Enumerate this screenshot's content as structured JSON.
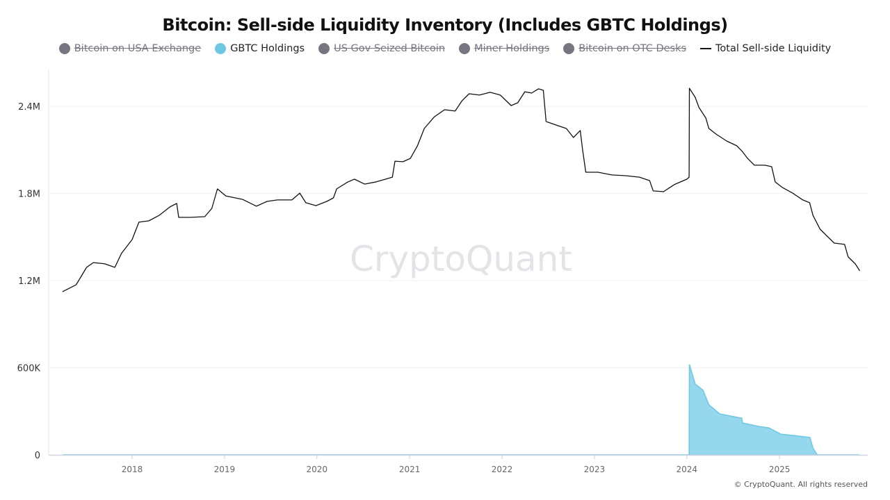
{
  "chart_data": {
    "type": "line",
    "title": "Bitcoin: Sell-side Liquidity Inventory (Includes GBTC Holdings)",
    "legend": [
      {
        "name": "Bitcoin on USA Exchange",
        "color": "#77757f",
        "hidden": true
      },
      {
        "name": "GBTC Holdings",
        "color": "#6ec8e4",
        "hidden": false
      },
      {
        "name": "US Gov Seized Bitcoin",
        "color": "#77757f",
        "hidden": true
      },
      {
        "name": "Miner Holdings",
        "color": "#77757f",
        "hidden": true
      },
      {
        "name": "Bitcoin on OTC Desks",
        "color": "#77757f",
        "hidden": true
      },
      {
        "name": "Total Sell-side Liquidity",
        "color": "#111111",
        "hidden": false
      }
    ],
    "legend_placement": "top",
    "y_ticks": [
      "0",
      "600K",
      "1.2M",
      "1.8M",
      "2.4M"
    ],
    "y_tick_values": [
      0,
      600000,
      1200000,
      1800000,
      2400000
    ],
    "x_ticks": [
      "2018",
      "2019",
      "2020",
      "2021",
      "2022",
      "2023",
      "2024",
      "2025"
    ],
    "xlim": [
      "2017-04-01",
      "2025-11-14"
    ],
    "ylim": [
      0,
      2600000
    ],
    "grid": true,
    "watermark": "CryptoQuant",
    "series": [
      {
        "name": "Total Sell-side Liquidity",
        "type": "line",
        "color": "#111111",
        "points": [
          [
            "2017-04-01",
            1123000
          ],
          [
            "2017-05-25",
            1171000
          ],
          [
            "2017-07-05",
            1291000
          ],
          [
            "2017-08-01",
            1324000
          ],
          [
            "2017-09-15",
            1315000
          ],
          [
            "2017-10-25",
            1291000
          ],
          [
            "2017-11-20",
            1387000
          ],
          [
            "2018-01-01",
            1482000
          ],
          [
            "2018-01-28",
            1602000
          ],
          [
            "2018-03-08",
            1611000
          ],
          [
            "2018-04-18",
            1649000
          ],
          [
            "2018-05-30",
            1707000
          ],
          [
            "2018-06-26",
            1731000
          ],
          [
            "2018-07-04",
            1635000
          ],
          [
            "2018-08-20",
            1635000
          ],
          [
            "2018-10-15",
            1640000
          ],
          [
            "2018-11-12",
            1697000
          ],
          [
            "2018-12-04",
            1831000
          ],
          [
            "2019-01-06",
            1783000
          ],
          [
            "2019-03-13",
            1759000
          ],
          [
            "2019-05-07",
            1712000
          ],
          [
            "2019-06-18",
            1745000
          ],
          [
            "2019-07-29",
            1755000
          ],
          [
            "2019-09-24",
            1755000
          ],
          [
            "2019-10-25",
            1802000
          ],
          [
            "2019-11-18",
            1736000
          ],
          [
            "2019-12-28",
            1716000
          ],
          [
            "2020-02-09",
            1745000
          ],
          [
            "2020-03-06",
            1769000
          ],
          [
            "2020-03-19",
            1831000
          ],
          [
            "2020-05-01",
            1878000
          ],
          [
            "2020-05-28",
            1898000
          ],
          [
            "2020-07-07",
            1864000
          ],
          [
            "2020-08-18",
            1878000
          ],
          [
            "2020-09-28",
            1898000
          ],
          [
            "2020-10-25",
            1912000
          ],
          [
            "2020-11-04",
            2022000
          ],
          [
            "2020-12-06",
            2018000
          ],
          [
            "2021-01-04",
            2041000
          ],
          [
            "2021-02-01",
            2128000
          ],
          [
            "2021-02-28",
            2247000
          ],
          [
            "2021-04-09",
            2328000
          ],
          [
            "2021-05-19",
            2376000
          ],
          [
            "2021-06-30",
            2367000
          ],
          [
            "2021-07-27",
            2438000
          ],
          [
            "2021-08-24",
            2486000
          ],
          [
            "2021-10-04",
            2477000
          ],
          [
            "2021-11-15",
            2496000
          ],
          [
            "2021-12-25",
            2477000
          ],
          [
            "2022-02-06",
            2405000
          ],
          [
            "2022-03-04",
            2424000
          ],
          [
            "2022-04-01",
            2500000
          ],
          [
            "2022-04-28",
            2491000
          ],
          [
            "2022-05-25",
            2520000
          ],
          [
            "2022-06-13",
            2510000
          ],
          [
            "2022-06-24",
            2295000
          ],
          [
            "2022-08-02",
            2271000
          ],
          [
            "2022-09-12",
            2247000
          ],
          [
            "2022-10-10",
            2185000
          ],
          [
            "2022-11-06",
            2233000
          ],
          [
            "2022-11-15",
            2104000
          ],
          [
            "2022-11-28",
            1946000
          ],
          [
            "2023-01-15",
            1946000
          ],
          [
            "2023-03-10",
            1927000
          ],
          [
            "2023-05-04",
            1922000
          ],
          [
            "2023-06-28",
            1912000
          ],
          [
            "2023-08-07",
            1888000
          ],
          [
            "2023-08-21",
            1817000
          ],
          [
            "2023-10-01",
            1812000
          ],
          [
            "2023-11-12",
            1860000
          ],
          [
            "2024-01-01",
            1898000
          ],
          [
            "2024-01-10",
            1912000
          ],
          [
            "2024-01-11",
            2524000
          ],
          [
            "2024-02-03",
            2462000
          ],
          [
            "2024-02-18",
            2391000
          ],
          [
            "2024-03-16",
            2319000
          ],
          [
            "2024-03-28",
            2247000
          ],
          [
            "2024-04-25",
            2209000
          ],
          [
            "2024-06-06",
            2161000
          ],
          [
            "2024-07-16",
            2128000
          ],
          [
            "2024-08-07",
            2089000
          ],
          [
            "2024-08-28",
            2041000
          ],
          [
            "2024-09-24",
            1994000
          ],
          [
            "2024-11-04",
            1994000
          ],
          [
            "2024-12-01",
            1984000
          ],
          [
            "2024-12-15",
            1879000
          ],
          [
            "2025-01-12",
            1841000
          ],
          [
            "2025-02-22",
            1802000
          ],
          [
            "2025-04-03",
            1755000
          ],
          [
            "2025-04-30",
            1736000
          ],
          [
            "2025-05-13",
            1649000
          ],
          [
            "2025-06-10",
            1554000
          ],
          [
            "2025-07-08",
            1506000
          ],
          [
            "2025-08-05",
            1458000
          ],
          [
            "2025-09-15",
            1449000
          ],
          [
            "2025-09-29",
            1363000
          ],
          [
            "2025-10-27",
            1315000
          ],
          [
            "2025-11-14",
            1267000
          ]
        ]
      },
      {
        "name": "GBTC Holdings",
        "type": "area",
        "color": "#6ec8e4",
        "points": [
          [
            "2017-04-01",
            0
          ],
          [
            "2024-01-10",
            0
          ],
          [
            "2024-01-11",
            622000
          ],
          [
            "2024-02-03",
            488000
          ],
          [
            "2024-03-05",
            445000
          ],
          [
            "2024-03-28",
            344000
          ],
          [
            "2024-05-10",
            282000
          ],
          [
            "2024-07-05",
            263000
          ],
          [
            "2024-08-05",
            253000
          ],
          [
            "2024-08-08",
            220000
          ],
          [
            "2024-10-10",
            196000
          ],
          [
            "2024-11-20",
            186000
          ],
          [
            "2025-01-06",
            143000
          ],
          [
            "2025-03-20",
            129000
          ],
          [
            "2025-05-01",
            120000
          ],
          [
            "2025-05-13",
            48000
          ],
          [
            "2025-05-30",
            0
          ],
          [
            "2025-11-14",
            0
          ]
        ]
      }
    ]
  },
  "footer": {
    "copyright": "© CryptoQuant. All rights reserved"
  }
}
